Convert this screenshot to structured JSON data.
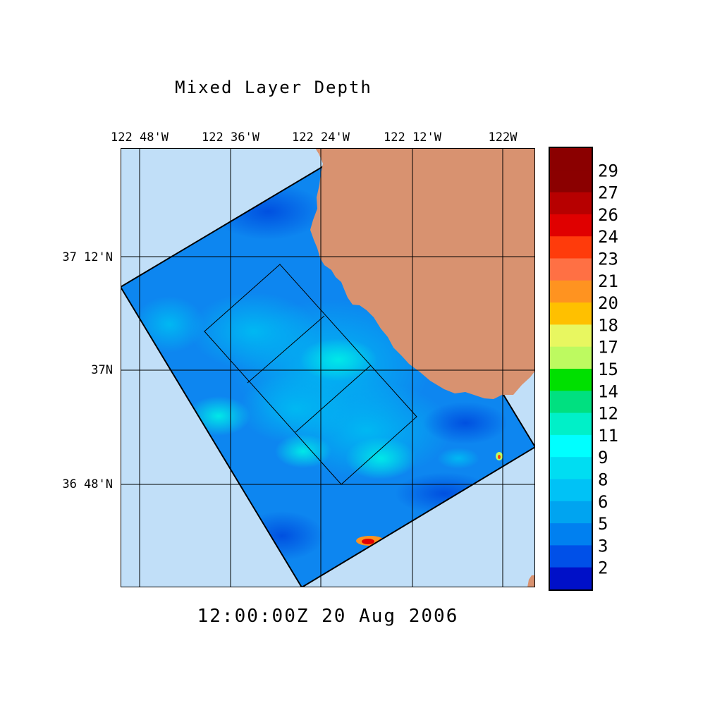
{
  "title": "Mixed Layer Depth",
  "timestamp": "12:00:00Z  20 Aug 2006",
  "axes": {
    "lon_labels": [
      "122 48'W",
      "122 36'W",
      "122 24'W",
      "122 12'W",
      "122W"
    ],
    "lat_labels": [
      "37 12'N",
      "37N",
      "36 48'N"
    ]
  },
  "colorbar": {
    "labels": [
      "29",
      "27",
      "26",
      "24",
      "23",
      "21",
      "20",
      "18",
      "17",
      "15",
      "14",
      "12",
      "11",
      "9",
      "8",
      "6",
      "5",
      "3",
      "2"
    ],
    "colors": [
      "#8b0000",
      "#b70000",
      "#e00000",
      "#ff3b0b",
      "#ff7044",
      "#ff9320",
      "#ffc000",
      "#e8f760",
      "#bdfa60",
      "#00e000",
      "#00e080",
      "#00f0c8",
      "#00ffff",
      "#00ddf2",
      "#00c2f6",
      "#00a4f0",
      "#0080f0",
      "#0050e8",
      "#0010c8"
    ]
  },
  "map_colors": {
    "ocean_outside": "#c1dff8",
    "land": "#d89270",
    "model_shallow": "#0070e8",
    "model_mid": "#00aef0",
    "model_deep": "#00d8f0"
  }
}
